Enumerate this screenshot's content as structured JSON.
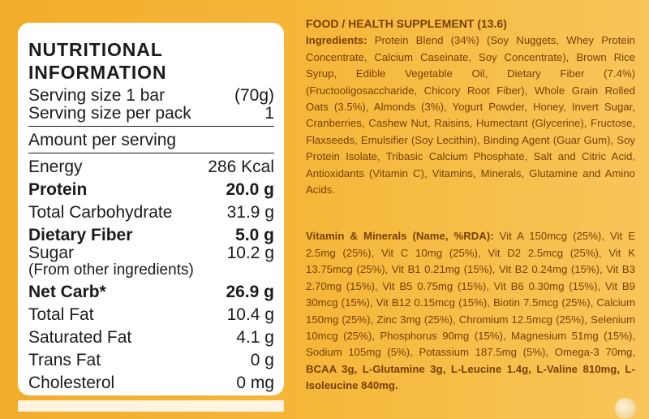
{
  "nutrition": {
    "title": "NUTRITIONAL INFORMATION",
    "serving_size_label": "Serving size 1 bar",
    "serving_size_value": "(70g)",
    "servings_per_pack_label": "Serving size per pack",
    "servings_per_pack_value": "1",
    "amount_per_serving": "Amount per serving",
    "rows": [
      {
        "label": "Energy",
        "value": "286 Kcal"
      },
      {
        "label": "Protein",
        "value": "20.0 g"
      },
      {
        "label": "Total Carbohydrate",
        "value": "31.9 g"
      },
      {
        "label": "Dietary Fiber",
        "value": "5.0 g"
      },
      {
        "label": "Sugar",
        "value": "10.2 g"
      },
      {
        "label": "(From other ingredients)",
        "value": ""
      },
      {
        "label": "Net Carb*",
        "value": "26.9 g"
      },
      {
        "label": "Total Fat",
        "value": "10.4 g"
      },
      {
        "label": "Saturated Fat",
        "value": "4.1 g"
      },
      {
        "label": "Trans Fat",
        "value": "0 g"
      },
      {
        "label": "Cholesterol",
        "value": "0 mg"
      }
    ]
  },
  "label_text": {
    "heading": "FOOD / HEALTH SUPPLEMENT (13.6)",
    "ingredients_label": "Ingredients:",
    "ingredients_text": "Protein Blend (34%) (Soy Nuggets, Whey Protein Concentrate, Calcium Caseinate, Soy Concentrate), Brown Rice Syrup, Edible Vegetable Oil, Dietary Fiber (7.4%) (Fructooligosaccharide, Chicory Root Fiber), Whole Grain Rolled Oats (3.5%), Almonds (3%), Yogurt Powder, Honey, Invert Sugar, Cranberries, Cashew Nut, Raisins, Humectant (Glycerine), Fructose, Flaxseeds, Emulsifier (Soy Lecithin), Binding Agent (Guar Gum), Soy Protein Isolate, Tribasic Calcium Phosphate, Salt and Citric Acid, Antioxidants (Vitamin C), Vitamins, Minerals, Glutamine and Amino Acids.",
    "vitamins_label": "Vitamin & Minerals (Name, %RDA):",
    "vitamins_text": "Vit A 150mcg (25%), Vit E 2.5mg (25%), Vit C 10mg (25%), Vit D2 2.5mcg (25%), Vit K 13.75mcg (25%), Vit B1 0.21mg (15%), Vit B2 0.24mg (15%), Vit B3 2.70mg (15%), Vit B5 0.75mg (15%), Vit B6 0.30mg (15%), Vit B9 30mcg (15%), Vit B12 0.15mcg (15%), Biotin 7.5mcg (25%), Calcium 150mg (25%), Zinc 3mg (25%), Chromium 12.5mcg (25%), Selenium 10mcg (25%), Phosphorus 90mg (15%), Magnesium 51mg (15%), Sodium 105mg (5%), Potassium 187.5mg (5%), Omega-3 70mg,",
    "vitamins_bold_tail": "BCAA 3g, L-Glutamine 3g, L-Leucine 1.4g, L-Valine 810mg, L-Isoleucine 840mg."
  }
}
